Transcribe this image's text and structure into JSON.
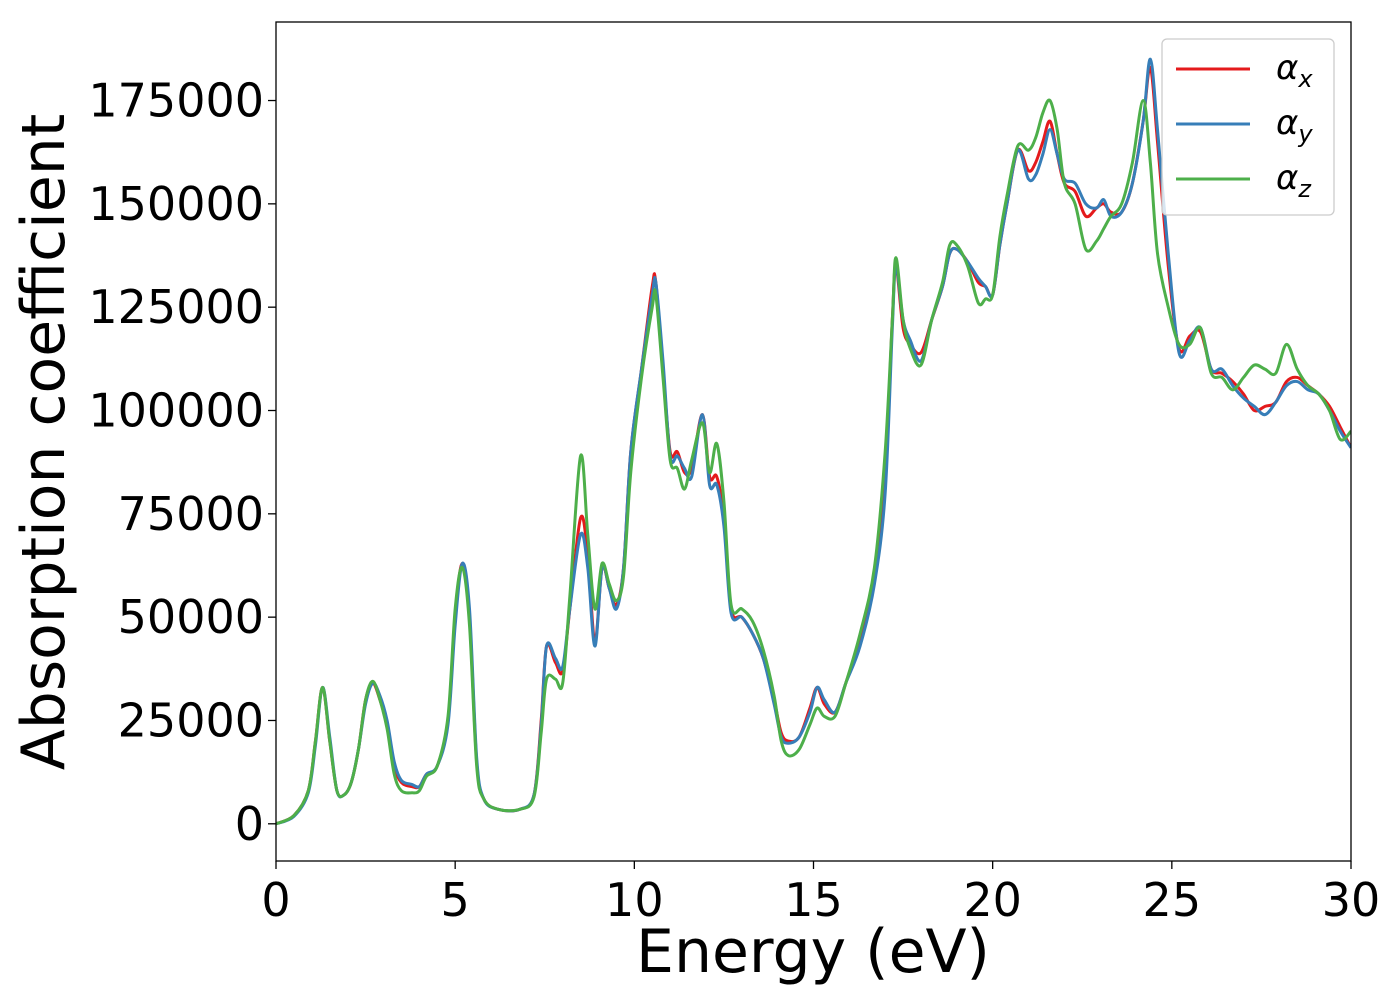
{
  "chart_data": {
    "type": "line",
    "title": "",
    "xlabel": "Energy (eV)",
    "ylabel": "Absorption coefficient",
    "xlim": [
      0,
      30
    ],
    "ylim": [
      -9000,
      194000
    ],
    "xticks": [
      0,
      5,
      10,
      15,
      20,
      25,
      30
    ],
    "yticks": [
      0,
      25000,
      50000,
      75000,
      100000,
      125000,
      150000,
      175000
    ],
    "grid": false,
    "legend_position": "top-right",
    "series": [
      {
        "name": "α_x",
        "symbol": "α",
        "subscript": "x",
        "color": "#e41a1c",
        "x": [
          0,
          0.5,
          0.9,
          1.1,
          1.3,
          1.5,
          1.7,
          1.9,
          2.1,
          2.3,
          2.5,
          2.7,
          2.9,
          3.1,
          3.3,
          3.5,
          3.8,
          4.0,
          4.2,
          4.5,
          4.8,
          5.0,
          5.2,
          5.4,
          5.6,
          5.8,
          6.2,
          6.8,
          7.2,
          7.4,
          7.55,
          7.8,
          8.0,
          8.2,
          8.5,
          8.7,
          8.9,
          9.1,
          9.3,
          9.5,
          9.7,
          9.9,
          10.2,
          10.5,
          10.6,
          10.8,
          11.0,
          11.2,
          11.4,
          11.6,
          11.9,
          12.1,
          12.3,
          12.5,
          12.7,
          13.0,
          13.3,
          13.6,
          13.9,
          14.1,
          14.3,
          14.6,
          14.9,
          15.1,
          15.3,
          15.6,
          15.9,
          16.3,
          16.7,
          17.0,
          17.2,
          17.3,
          17.5,
          17.7,
          18.0,
          18.3,
          18.6,
          18.8,
          19.0,
          19.3,
          19.6,
          19.8,
          20.0,
          20.2,
          20.4,
          20.7,
          21.0,
          21.2,
          21.4,
          21.6,
          21.8,
          22.0,
          22.3,
          22.6,
          22.9,
          23.1,
          23.3,
          23.6,
          23.9,
          24.2,
          24.4,
          24.6,
          24.9,
          25.2,
          25.5,
          25.8,
          26.1,
          26.4,
          26.7,
          27.0,
          27.3,
          27.6,
          27.9,
          28.2,
          28.5,
          28.8,
          29.1,
          29.4,
          29.7,
          30.0
        ],
        "y": [
          0,
          2000,
          8000,
          20000,
          33000,
          20000,
          8000,
          7000,
          10000,
          18000,
          30000,
          34000,
          30000,
          24000,
          14000,
          10000,
          9000,
          9000,
          12000,
          14000,
          25000,
          50000,
          63000,
          50000,
          15000,
          6000,
          3500,
          3500,
          7000,
          25000,
          43000,
          39000,
          37000,
          52000,
          74000,
          65000,
          44000,
          62000,
          57000,
          53000,
          62000,
          90000,
          110000,
          130000,
          131000,
          110000,
          90000,
          90000,
          85000,
          86000,
          99000,
          84000,
          84000,
          74000,
          52000,
          50000,
          46000,
          40000,
          30000,
          22000,
          20000,
          21000,
          28000,
          33000,
          29000,
          27000,
          34000,
          45000,
          60000,
          85000,
          122000,
          135000,
          120000,
          116000,
          114000,
          122000,
          130000,
          138000,
          139000,
          136000,
          131000,
          130000,
          128000,
          140000,
          150000,
          163000,
          158000,
          160000,
          165000,
          170000,
          162000,
          155000,
          153000,
          147000,
          149000,
          150000,
          148000,
          148000,
          155000,
          170000,
          183000,
          165000,
          135000,
          115000,
          118000,
          119000,
          110000,
          109000,
          107000,
          104000,
          100000,
          101000,
          102000,
          107000,
          108000,
          106000,
          104000,
          101000,
          96000,
          91000
        ],
        "note_y_last": [
          0
        ]
      }
    ]
  }
}
